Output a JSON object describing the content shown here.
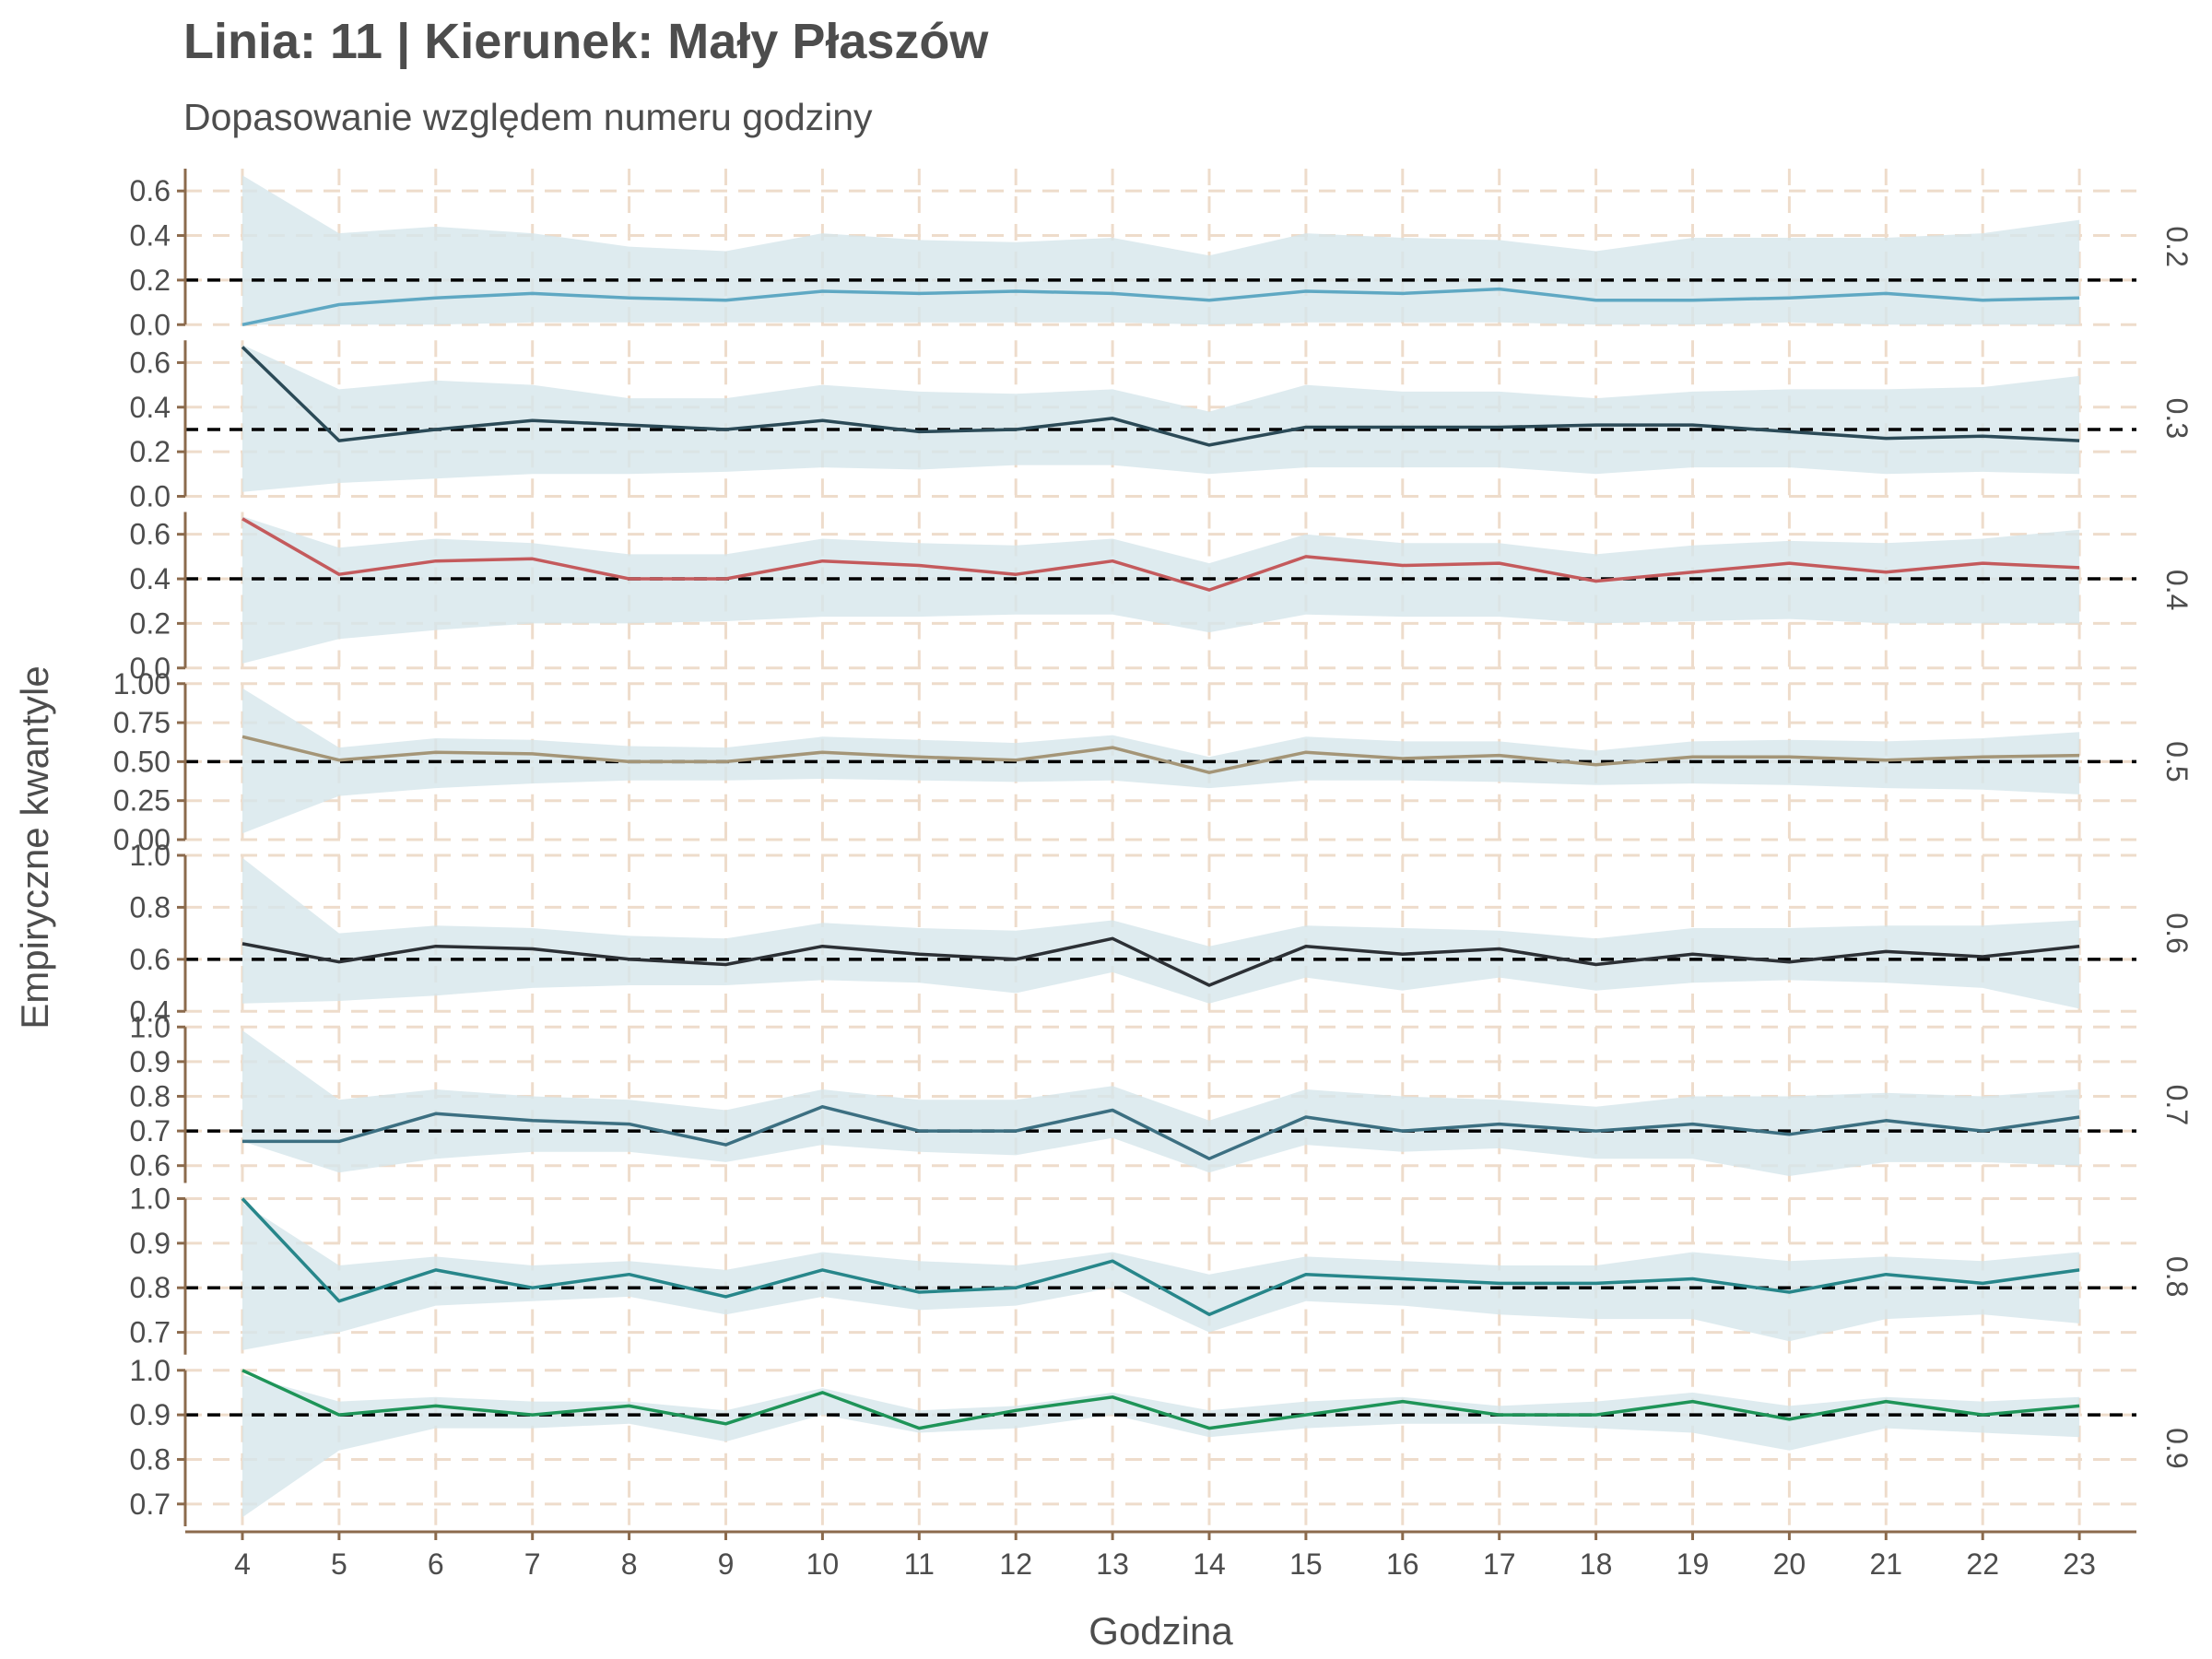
{
  "title": "Linia: 11 | Kierunek: Mały Płaszów",
  "subtitle": "Dopasowanie względem numeru godziny",
  "chart_data": {
    "type": "line",
    "title": "Linia: 11 | Kierunek: Mały Płaszów",
    "subtitle": "Dopasowanie względem numeru godziny",
    "xlabel": "Godzina",
    "ylabel": "Empiryczne kwantyle",
    "x": [
      4,
      5,
      6,
      7,
      8,
      9,
      10,
      11,
      12,
      13,
      14,
      15,
      16,
      17,
      18,
      19,
      20,
      21,
      22,
      23
    ],
    "grid": true,
    "reference_line": "dashed black at nominal quantile level",
    "colors": {
      "band": "#d6e6eb",
      "grid": "#eedccb",
      "axis": "#8b6a4c",
      "text": "#4d4d4d",
      "reference": "#000000"
    },
    "facets": [
      {
        "strip": "0.2",
        "reference": 0.2,
        "color": "#5fa8c3",
        "ylim": [
          0,
          0.7
        ],
        "yticks": [
          "0.0",
          "0.2",
          "0.4",
          "0.6"
        ],
        "ytick_values": [
          0,
          0.2,
          0.4,
          0.6
        ],
        "values": [
          0.0,
          0.09,
          0.12,
          0.14,
          0.12,
          0.11,
          0.15,
          0.14,
          0.15,
          0.14,
          0.11,
          0.15,
          0.14,
          0.16,
          0.11,
          0.11,
          0.12,
          0.14,
          0.11,
          0.12
        ],
        "band_upper": [
          0.67,
          0.41,
          0.44,
          0.41,
          0.35,
          0.33,
          0.41,
          0.38,
          0.37,
          0.39,
          0.31,
          0.41,
          0.39,
          0.38,
          0.33,
          0.39,
          0.39,
          0.39,
          0.41,
          0.47
        ],
        "band_lower": [
          0.0,
          0.0,
          0.0,
          0.01,
          0.01,
          0.01,
          0.01,
          0.01,
          0.01,
          0.01,
          0.0,
          0.01,
          0.01,
          0.01,
          0.0,
          0.0,
          0.01,
          0.0,
          0.0,
          0.0
        ]
      },
      {
        "strip": "0.3",
        "reference": 0.3,
        "color": "#2b4a57",
        "ylim": [
          0,
          0.7
        ],
        "yticks": [
          "0.0",
          "0.2",
          "0.4",
          "0.6"
        ],
        "ytick_values": [
          0,
          0.2,
          0.4,
          0.6
        ],
        "values": [
          0.67,
          0.25,
          0.3,
          0.34,
          0.32,
          0.3,
          0.34,
          0.29,
          0.3,
          0.35,
          0.23,
          0.31,
          0.31,
          0.31,
          0.32,
          0.32,
          0.29,
          0.26,
          0.27,
          0.25
        ],
        "band_upper": [
          0.68,
          0.48,
          0.52,
          0.5,
          0.44,
          0.44,
          0.5,
          0.47,
          0.46,
          0.48,
          0.38,
          0.5,
          0.47,
          0.47,
          0.44,
          0.47,
          0.48,
          0.48,
          0.49,
          0.54
        ],
        "band_lower": [
          0.02,
          0.06,
          0.08,
          0.1,
          0.1,
          0.11,
          0.13,
          0.12,
          0.14,
          0.14,
          0.1,
          0.13,
          0.13,
          0.13,
          0.1,
          0.13,
          0.13,
          0.1,
          0.11,
          0.1
        ]
      },
      {
        "strip": "0.4",
        "reference": 0.4,
        "color": "#c45a5c",
        "ylim": [
          0,
          0.7
        ],
        "yticks": [
          "0.0",
          "0.2",
          "0.4",
          "0.6"
        ],
        "ytick_values": [
          0,
          0.2,
          0.4,
          0.6
        ],
        "values": [
          0.67,
          0.42,
          0.48,
          0.49,
          0.4,
          0.4,
          0.48,
          0.46,
          0.42,
          0.48,
          0.35,
          0.5,
          0.46,
          0.47,
          0.39,
          0.43,
          0.47,
          0.43,
          0.47,
          0.45
        ],
        "band_upper": [
          0.68,
          0.54,
          0.58,
          0.56,
          0.51,
          0.51,
          0.58,
          0.56,
          0.55,
          0.58,
          0.47,
          0.6,
          0.56,
          0.56,
          0.51,
          0.55,
          0.57,
          0.56,
          0.58,
          0.62
        ],
        "band_lower": [
          0.02,
          0.13,
          0.17,
          0.2,
          0.2,
          0.21,
          0.23,
          0.23,
          0.24,
          0.24,
          0.16,
          0.24,
          0.23,
          0.23,
          0.2,
          0.21,
          0.22,
          0.2,
          0.2,
          0.2
        ]
      },
      {
        "strip": "0.5",
        "reference": 0.5,
        "color": "#a49577",
        "ylim": [
          0,
          1.0
        ],
        "yticks": [
          "0.00",
          "0.25",
          "0.50",
          "0.75",
          "1.00"
        ],
        "ytick_values": [
          0,
          0.25,
          0.5,
          0.75,
          1.0
        ],
        "values": [
          0.66,
          0.51,
          0.56,
          0.55,
          0.5,
          0.5,
          0.56,
          0.53,
          0.51,
          0.59,
          0.43,
          0.56,
          0.52,
          0.54,
          0.48,
          0.53,
          0.53,
          0.51,
          0.53,
          0.54
        ],
        "band_upper": [
          0.97,
          0.59,
          0.65,
          0.64,
          0.6,
          0.59,
          0.66,
          0.64,
          0.62,
          0.67,
          0.53,
          0.66,
          0.63,
          0.63,
          0.57,
          0.63,
          0.64,
          0.63,
          0.65,
          0.69
        ],
        "band_lower": [
          0.04,
          0.28,
          0.33,
          0.36,
          0.38,
          0.38,
          0.39,
          0.38,
          0.37,
          0.38,
          0.33,
          0.38,
          0.38,
          0.37,
          0.35,
          0.36,
          0.35,
          0.33,
          0.32,
          0.29
        ]
      },
      {
        "strip": "0.6",
        "reference": 0.6,
        "color": "#2c3035",
        "ylim": [
          0.4,
          1.0
        ],
        "yticks": [
          "0.4",
          "0.6",
          "0.8",
          "1.0"
        ],
        "ytick_values": [
          0.4,
          0.6,
          0.8,
          1.0
        ],
        "values": [
          0.66,
          0.59,
          0.65,
          0.64,
          0.6,
          0.58,
          0.65,
          0.62,
          0.6,
          0.68,
          0.5,
          0.65,
          0.62,
          0.64,
          0.58,
          0.62,
          0.59,
          0.63,
          0.61,
          0.65
        ],
        "band_upper": [
          0.99,
          0.7,
          0.73,
          0.72,
          0.69,
          0.68,
          0.74,
          0.72,
          0.71,
          0.75,
          0.65,
          0.73,
          0.72,
          0.71,
          0.68,
          0.72,
          0.72,
          0.73,
          0.73,
          0.75
        ],
        "band_lower": [
          0.43,
          0.44,
          0.46,
          0.49,
          0.5,
          0.5,
          0.52,
          0.51,
          0.47,
          0.55,
          0.43,
          0.53,
          0.48,
          0.53,
          0.48,
          0.51,
          0.52,
          0.51,
          0.49,
          0.41
        ]
      },
      {
        "strip": "0.7",
        "reference": 0.7,
        "color": "#3c6f81",
        "ylim": [
          0.55,
          1.0
        ],
        "yticks": [
          "0.6",
          "0.7",
          "0.8",
          "0.9",
          "1.0"
        ],
        "ytick_values": [
          0.6,
          0.7,
          0.8,
          0.9,
          1.0
        ],
        "values": [
          0.67,
          0.67,
          0.75,
          0.73,
          0.72,
          0.66,
          0.77,
          0.7,
          0.7,
          0.76,
          0.62,
          0.74,
          0.7,
          0.72,
          0.7,
          0.72,
          0.69,
          0.73,
          0.7,
          0.74
        ],
        "band_upper": [
          0.99,
          0.79,
          0.82,
          0.8,
          0.79,
          0.76,
          0.82,
          0.79,
          0.79,
          0.83,
          0.73,
          0.82,
          0.8,
          0.79,
          0.77,
          0.8,
          0.8,
          0.81,
          0.8,
          0.82
        ],
        "band_lower": [
          0.67,
          0.58,
          0.62,
          0.64,
          0.64,
          0.61,
          0.66,
          0.64,
          0.63,
          0.68,
          0.58,
          0.66,
          0.64,
          0.65,
          0.62,
          0.62,
          0.57,
          0.61,
          0.61,
          0.6
        ]
      },
      {
        "strip": "0.8",
        "reference": 0.8,
        "color": "#27868a",
        "ylim": [
          0.65,
          1.0
        ],
        "yticks": [
          "0.7",
          "0.8",
          "0.9",
          "1.0"
        ],
        "ytick_values": [
          0.7,
          0.8,
          0.9,
          1.0
        ],
        "values": [
          1.0,
          0.77,
          0.84,
          0.8,
          0.83,
          0.78,
          0.84,
          0.79,
          0.8,
          0.86,
          0.74,
          0.83,
          0.82,
          0.81,
          0.81,
          0.82,
          0.79,
          0.83,
          0.81,
          0.84
        ],
        "band_upper": [
          0.99,
          0.85,
          0.87,
          0.85,
          0.86,
          0.84,
          0.88,
          0.86,
          0.85,
          0.88,
          0.83,
          0.87,
          0.86,
          0.85,
          0.85,
          0.88,
          0.86,
          0.87,
          0.86,
          0.88
        ],
        "band_lower": [
          0.66,
          0.7,
          0.76,
          0.77,
          0.78,
          0.74,
          0.78,
          0.75,
          0.76,
          0.8,
          0.7,
          0.77,
          0.76,
          0.74,
          0.73,
          0.73,
          0.68,
          0.73,
          0.74,
          0.72
        ]
      },
      {
        "strip": "0.9",
        "reference": 0.9,
        "color": "#1e9458",
        "ylim": [
          0.65,
          1.0
        ],
        "yticks": [
          "0.7",
          "0.8",
          "0.9",
          "1.0"
        ],
        "ytick_values": [
          0.7,
          0.8,
          0.9,
          1.0
        ],
        "values": [
          1.0,
          0.9,
          0.92,
          0.9,
          0.92,
          0.88,
          0.95,
          0.87,
          0.91,
          0.94,
          0.87,
          0.9,
          0.93,
          0.9,
          0.9,
          0.93,
          0.89,
          0.93,
          0.9,
          0.92
        ],
        "band_upper": [
          0.99,
          0.93,
          0.94,
          0.93,
          0.93,
          0.91,
          0.96,
          0.91,
          0.92,
          0.95,
          0.91,
          0.93,
          0.94,
          0.92,
          0.93,
          0.95,
          0.92,
          0.94,
          0.93,
          0.94
        ],
        "band_lower": [
          0.67,
          0.82,
          0.87,
          0.87,
          0.88,
          0.84,
          0.9,
          0.86,
          0.87,
          0.9,
          0.85,
          0.87,
          0.88,
          0.88,
          0.87,
          0.86,
          0.82,
          0.87,
          0.86,
          0.85
        ]
      }
    ]
  }
}
